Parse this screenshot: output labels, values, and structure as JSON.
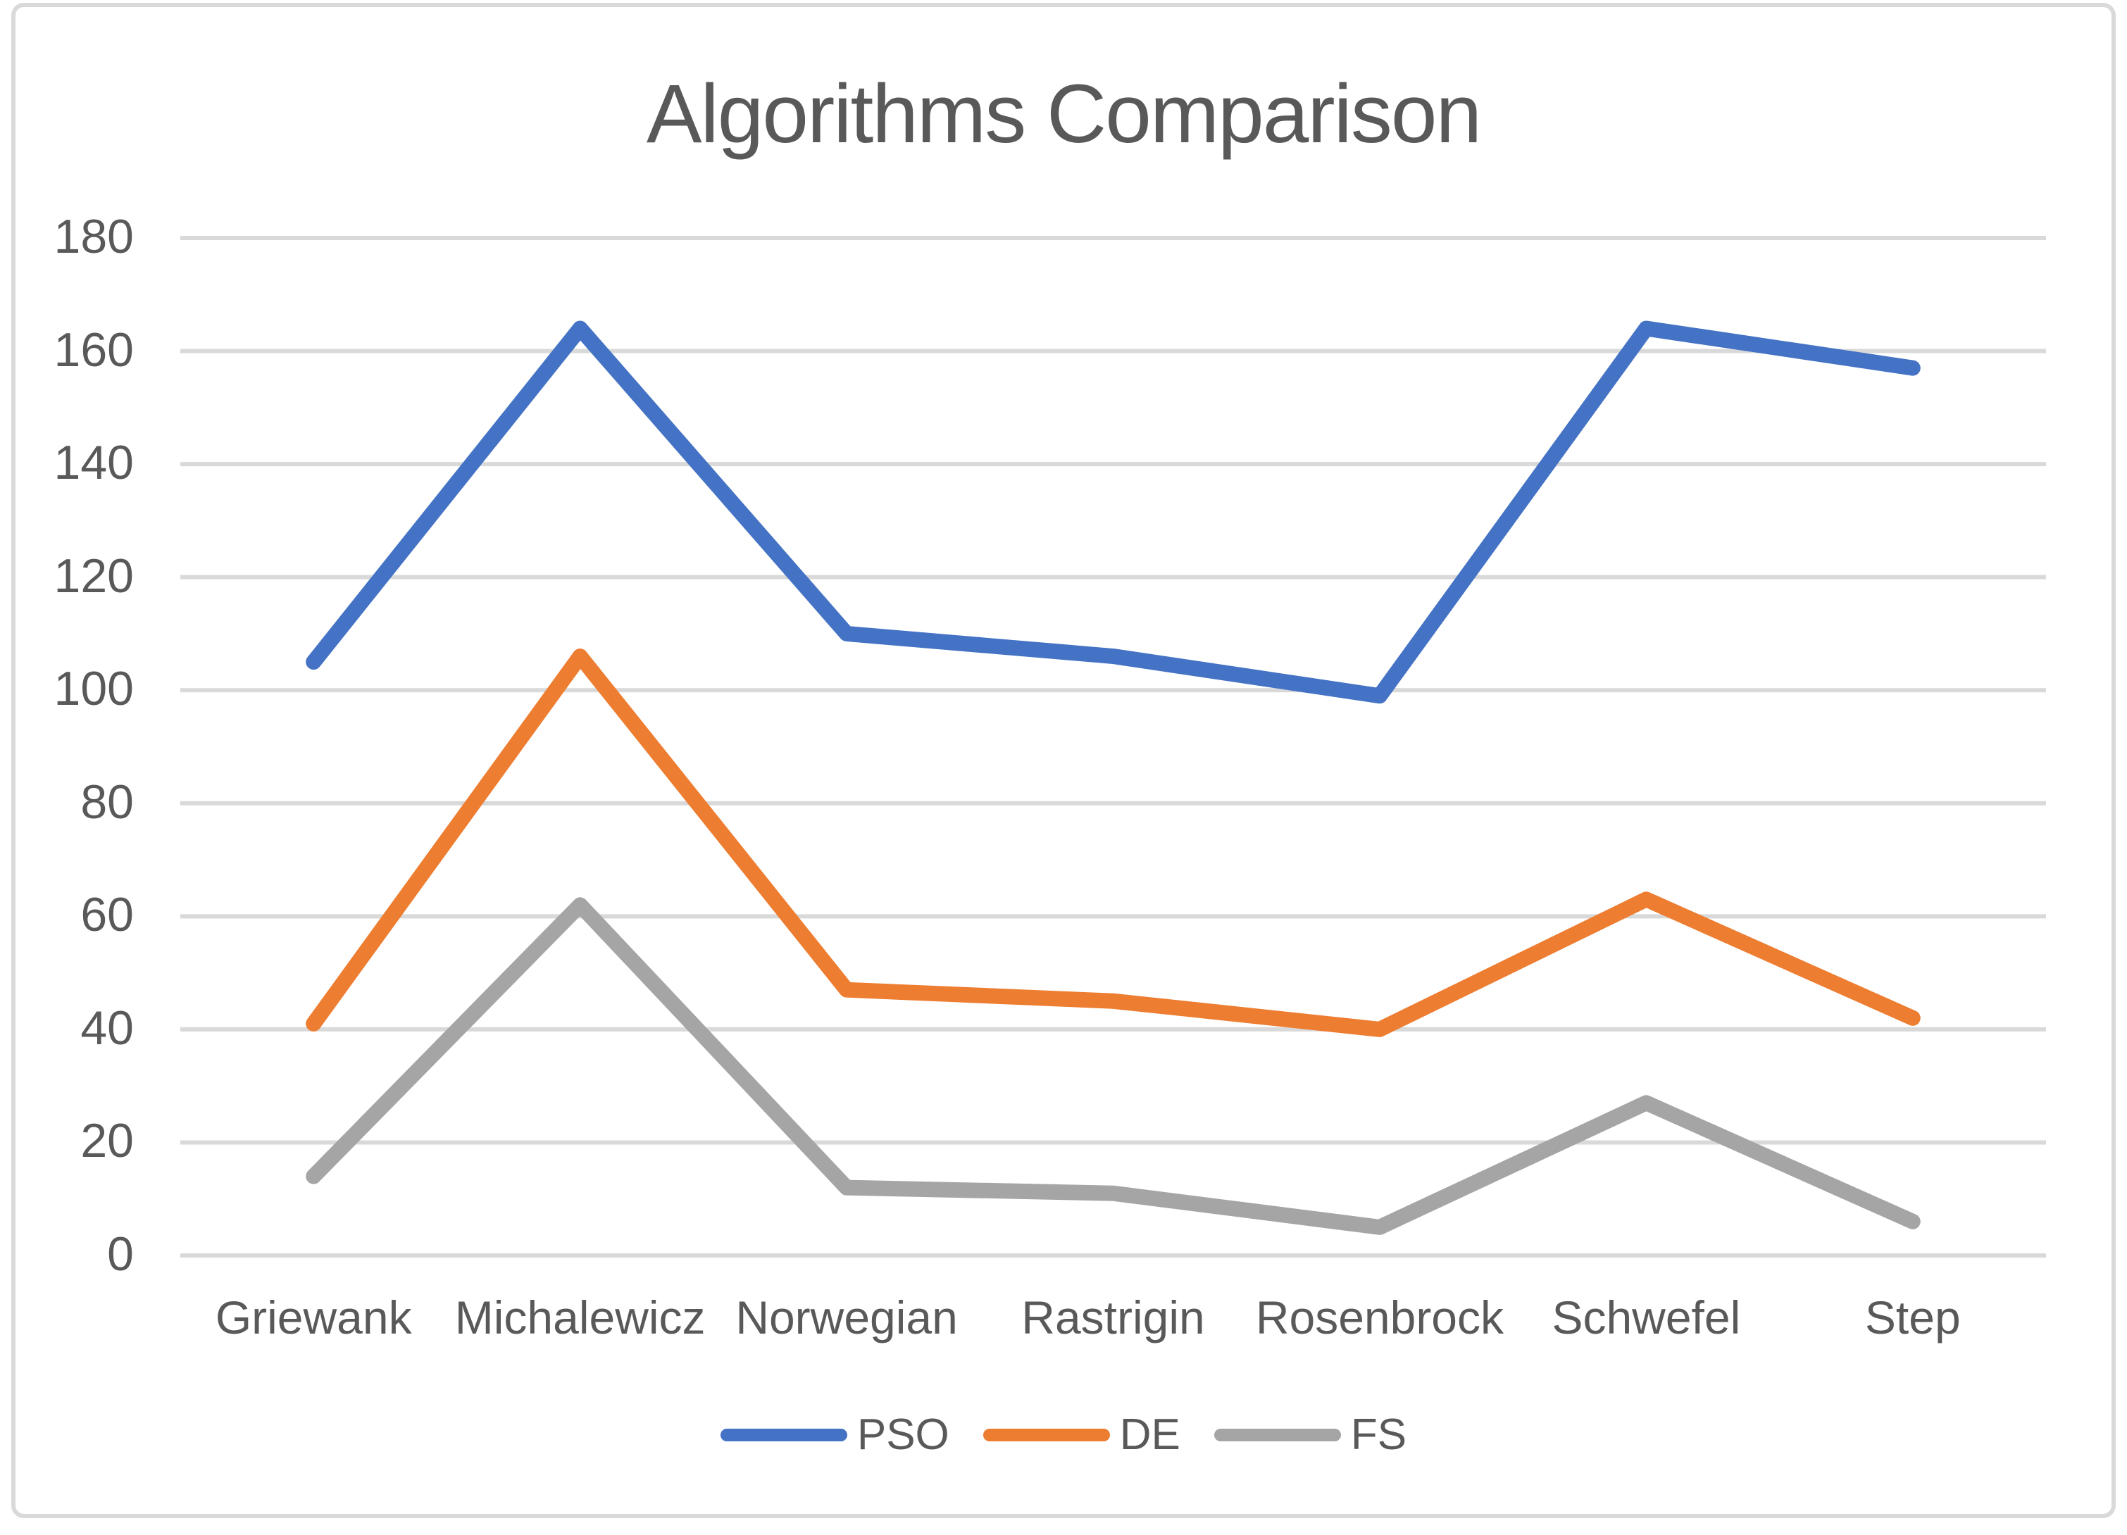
{
  "chart_data": {
    "type": "line",
    "title": "Algorithms Comparison",
    "categories": [
      "Griewank",
      "Michalewicz",
      "Norwegian",
      "Rastrigin",
      "Rosenbrock",
      "Schwefel",
      "Step"
    ],
    "series": [
      {
        "name": "PSO",
        "color": "#4472C4",
        "values": [
          105,
          164,
          110,
          106,
          99,
          164,
          157
        ]
      },
      {
        "name": "DE",
        "color": "#ED7D31",
        "values": [
          41,
          106,
          47,
          45,
          40,
          63,
          42
        ]
      },
      {
        "name": "FS",
        "color": "#A5A5A5",
        "values": [
          14,
          62,
          12,
          11,
          5,
          27,
          6
        ]
      }
    ],
    "ylim": [
      0,
      180
    ],
    "ytick_step": 20,
    "yticks": [
      0,
      20,
      40,
      60,
      80,
      100,
      120,
      140,
      160,
      180
    ],
    "xlabel": "",
    "ylabel": "",
    "grid": true,
    "gridline_color": "#D9D9D9",
    "text_color": "#595959",
    "legend_position": "bottom",
    "line_width": 22
  }
}
